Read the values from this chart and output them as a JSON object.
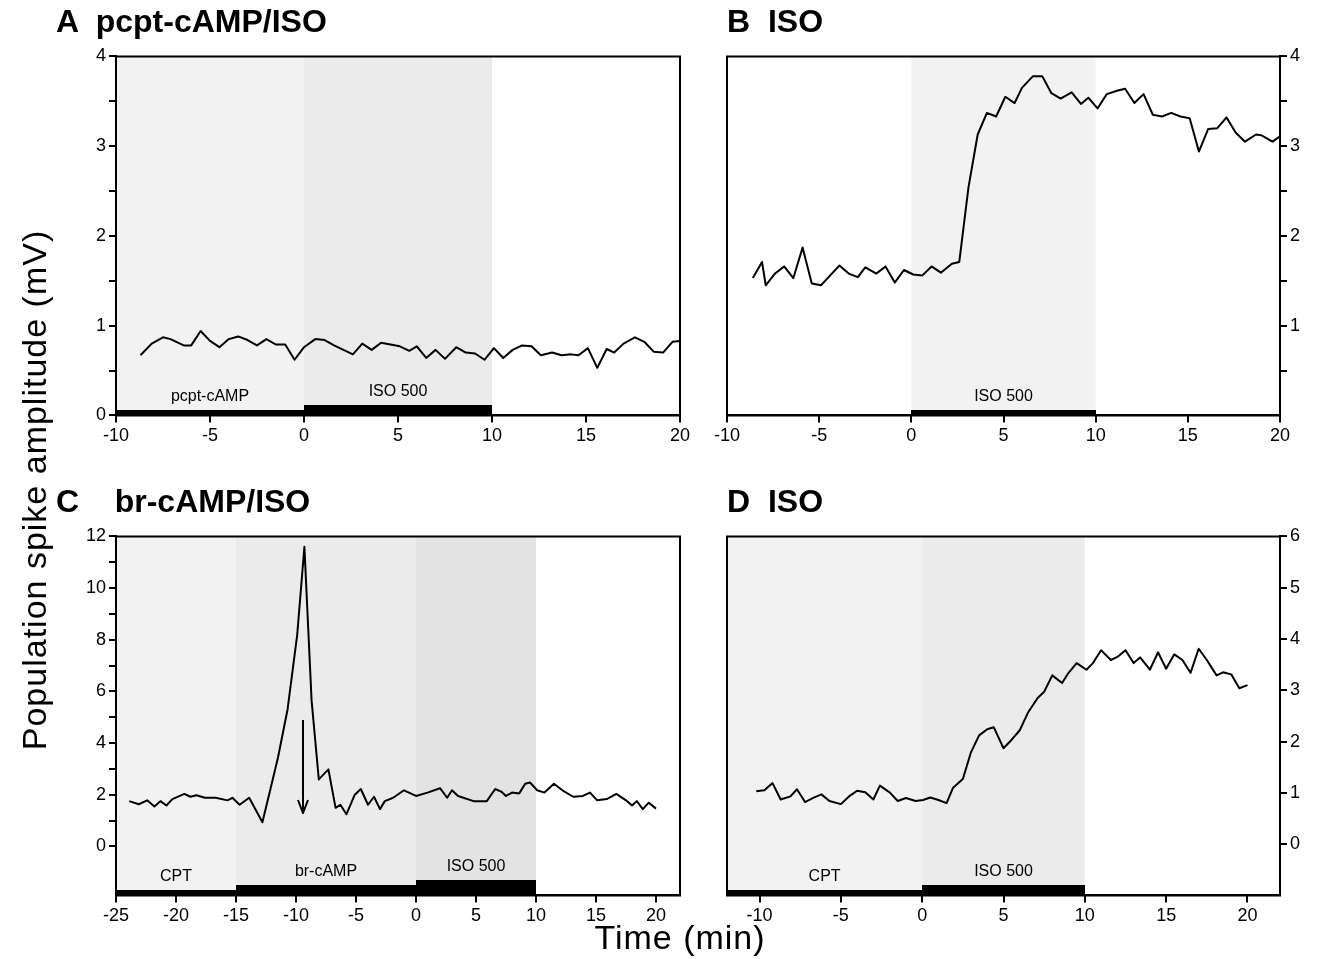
{
  "chart_data": [
    {
      "type": "line",
      "title": "A  pcpt-cAMP/ISO",
      "ylabel": "Population spike amplitude (mV)",
      "xlim": [
        -10,
        20
      ],
      "xticks": [
        -10,
        -5,
        0,
        5,
        10,
        15,
        20
      ],
      "ylim": [
        0,
        4
      ],
      "yticks": [
        0,
        {
          "value": 0.5,
          "label": null
        },
        1,
        {
          "value": 1.5,
          "label": null
        },
        2,
        {
          "value": 2.5,
          "label": null
        },
        3,
        {
          "value": 3.5,
          "label": null
        },
        4
      ],
      "grid": false,
      "x": [
        -8.7,
        -8.1,
        -7.5,
        -7.1,
        -6.4,
        -6.0,
        -5.5,
        -5.0,
        -4.5,
        -4.0,
        -3.5,
        -3.0,
        -2.5,
        -2.0,
        -1.5,
        -1.0,
        -0.5,
        0,
        0.6,
        1.1,
        1.6,
        2.1,
        2.6,
        3.1,
        3.6,
        4.1,
        4.6,
        5.1,
        5.6,
        6.0,
        6.5,
        7.0,
        7.5,
        8.1,
        8.6,
        9.1,
        9.6,
        10.1,
        10.6,
        11.1,
        11.6,
        12.1,
        12.6,
        13.2,
        13.7,
        14.2,
        14.6,
        15.1,
        15.6,
        16.1,
        16.5,
        17.0,
        17.6,
        18.1,
        18.6,
        19.1,
        19.6,
        20
      ],
      "series": [
        {
          "color": "#000000",
          "values": [
            0.67,
            0.8,
            0.87,
            0.85,
            0.78,
            0.78,
            0.94,
            0.83,
            0.76,
            0.85,
            0.88,
            0.84,
            0.78,
            0.85,
            0.79,
            0.79,
            0.62,
            0.76,
            0.85,
            0.84,
            0.78,
            0.73,
            0.68,
            0.8,
            0.73,
            0.81,
            0.79,
            0.77,
            0.72,
            0.77,
            0.64,
            0.73,
            0.63,
            0.76,
            0.7,
            0.69,
            0.62,
            0.75,
            0.64,
            0.73,
            0.78,
            0.77,
            0.67,
            0.7,
            0.67,
            0.68,
            0.67,
            0.75,
            0.53,
            0.74,
            0.7,
            0.8,
            0.87,
            0.82,
            0.71,
            0.7,
            0.82,
            0.83
          ]
        }
      ],
      "bands": [
        {
          "axis": "x",
          "from": -10,
          "to": 0,
          "label": "pcpt-cAMP"
        },
        {
          "axis": "x",
          "from": 0,
          "to": 10,
          "label": "ISO 500"
        }
      ]
    },
    {
      "type": "line",
      "title": "B  ISO",
      "xlim": [
        -10,
        20
      ],
      "xticks": [
        -10,
        -5,
        0,
        5,
        10,
        15,
        20
      ],
      "y2lim": [
        0,
        4
      ],
      "y2ticks": [
        {
          "value": 0.5,
          "label": null
        },
        1,
        {
          "value": 1.5,
          "label": null
        },
        2,
        {
          "value": 2.5,
          "label": null
        },
        3,
        {
          "value": 3.5,
          "label": null
        },
        4
      ],
      "grid": false,
      "x": [
        -8.6,
        -8.1,
        -7.9,
        -7.4,
        -6.9,
        -6.4,
        -5.9,
        -5.4,
        -4.9,
        -4.4,
        -3.9,
        -3.4,
        -2.9,
        -2.5,
        -1.9,
        -1.4,
        -0.9,
        -0.4,
        0.1,
        0.6,
        1.1,
        1.6,
        2.2,
        2.6,
        3.1,
        3.6,
        4.1,
        4.6,
        5.1,
        5.6,
        6.0,
        6.6,
        7.1,
        7.6,
        8.1,
        8.7,
        9.2,
        9.6,
        10.1,
        10.6,
        11.2,
        11.6,
        12.1,
        12.6,
        13.1,
        13.6,
        14.1,
        14.6,
        15.1,
        15.6,
        16.1,
        16.6,
        17.1,
        17.6,
        18.1,
        18.7,
        19.0,
        19.6,
        20.0
      ],
      "series": [
        {
          "color": "#000000",
          "axis": "y2",
          "values": [
            1.53,
            1.71,
            1.45,
            1.58,
            1.66,
            1.53,
            1.87,
            1.47,
            1.45,
            1.56,
            1.67,
            1.58,
            1.54,
            1.65,
            1.58,
            1.66,
            1.48,
            1.62,
            1.57,
            1.56,
            1.66,
            1.59,
            1.69,
            1.71,
            2.54,
            3.13,
            3.37,
            3.33,
            3.55,
            3.48,
            3.65,
            3.78,
            3.78,
            3.59,
            3.53,
            3.6,
            3.47,
            3.54,
            3.42,
            3.58,
            3.62,
            3.64,
            3.48,
            3.58,
            3.35,
            3.33,
            3.37,
            3.33,
            3.31,
            2.94,
            3.19,
            3.2,
            3.32,
            3.15,
            3.05,
            3.13,
            3.12,
            3.05,
            3.11
          ]
        }
      ],
      "bands": [
        {
          "axis": "x",
          "from": 0,
          "to": 10,
          "label": "ISO 500"
        }
      ]
    },
    {
      "type": "line",
      "title": "C    br-cAMP/ISO",
      "xlabel": "Time (min)",
      "xlim": [
        -25,
        22
      ],
      "xticks": [
        -25,
        -20,
        -15,
        -10,
        -5,
        0,
        5,
        10,
        15,
        20
      ],
      "ylim": [
        -1.9,
        12
      ],
      "yticks": [
        0,
        {
          "value": 1,
          "label": null
        },
        2,
        {
          "value": 3,
          "label": null
        },
        4,
        {
          "value": 5,
          "label": null
        },
        6,
        {
          "value": 7,
          "label": null
        },
        8,
        {
          "value": 9,
          "label": null
        },
        10,
        {
          "value": 11,
          "label": null
        },
        12
      ],
      "grid": false,
      "x": [
        -23.9,
        -23.1,
        -22.4,
        -21.8,
        -21.3,
        -20.8,
        -20.3,
        -19.3,
        -18.8,
        -18.3,
        -17.6,
        -16.7,
        -15.7,
        -15.3,
        -14.7,
        -13.9,
        -12.8,
        -12.2,
        -11.5,
        -10.7,
        -9.9,
        -9.3,
        -8.7,
        -8.1,
        -7.3,
        -6.7,
        -6.3,
        -5.8,
        -5.1,
        -4.6,
        -4.0,
        -3.5,
        -3.0,
        -2.6,
        -1.9,
        -1.0,
        0,
        0.96,
        2.0,
        2.6,
        3.0,
        3.5,
        4.8,
        5.9,
        6.6,
        7.1,
        7.5,
        8.0,
        8.6,
        9.1,
        9.5,
        10.1,
        10.7,
        11.5,
        12.2,
        13.1,
        13.9,
        14.5,
        15.1,
        15.9,
        16.7,
        17.5,
        18.0,
        18.4,
        18.9,
        19.4,
        20
      ],
      "series": [
        {
          "color": "#000000",
          "values": [
            1.75,
            1.63,
            1.78,
            1.54,
            1.75,
            1.58,
            1.83,
            2.03,
            1.92,
            1.98,
            1.88,
            1.88,
            1.78,
            1.88,
            1.61,
            1.88,
            0.93,
            2.08,
            3.44,
            5.31,
            8.19,
            11.6,
            5.64,
            2.59,
            2.98,
            1.49,
            1.61,
            1.24,
            2.0,
            2.22,
            1.61,
            1.92,
            1.44,
            1.75,
            1.88,
            2.17,
            1.95,
            2.08,
            2.25,
            1.88,
            2.17,
            1.95,
            1.75,
            1.75,
            2.22,
            2.12,
            1.95,
            2.08,
            2.05,
            2.42,
            2.47,
            2.17,
            2.08,
            2.42,
            2.17,
            1.92,
            1.95,
            2.08,
            1.78,
            1.83,
            2.03,
            1.78,
            1.58,
            1.75,
            1.44,
            1.69,
            1.46
          ]
        }
      ],
      "bands": [
        {
          "axis": "x",
          "from": -25,
          "to": -15,
          "label": "CPT"
        },
        {
          "axis": "x",
          "from": -15,
          "to": 0,
          "label": "br-cAMP"
        },
        {
          "axis": "x",
          "from": 0,
          "to": 10,
          "label": "ISO 500"
        }
      ]
    },
    {
      "type": "line",
      "title": "D  ISO",
      "xlim": [
        -12,
        22
      ],
      "xticks": [
        -10,
        -5,
        0,
        5,
        10,
        15,
        20
      ],
      "y2lim": [
        -1,
        6
      ],
      "y2ticks": [
        0,
        1,
        2,
        3,
        4,
        5,
        6
      ],
      "grid": false,
      "x": [
        -10.2,
        -9.7,
        -9.2,
        -8.7,
        -8.1,
        -7.7,
        -7.2,
        -6.7,
        -6.2,
        -5.7,
        -5.0,
        -4.5,
        -4.0,
        -3.5,
        -3.0,
        -2.6,
        -2.0,
        -1.5,
        -1.0,
        -0.4,
        0.05,
        0.5,
        1.0,
        1.5,
        1.9,
        2.5,
        3.0,
        3.5,
        4.0,
        4.4,
        5.0,
        5.4,
        6.0,
        6.5,
        7.1,
        7.5,
        8.0,
        8.6,
        9.0,
        9.5,
        10.1,
        10.5,
        11.0,
        11.6,
        12.0,
        12.5,
        13.0,
        13.4,
        14.0,
        14.5,
        15.0,
        15.5,
        16.0,
        16.5,
        17.0,
        17.5,
        18.1,
        18.5,
        19.0,
        19.5,
        20.0
      ],
      "series": [
        {
          "color": "#000000",
          "axis": "y2",
          "values": [
            1.03,
            1.05,
            1.19,
            0.87,
            0.93,
            1.07,
            0.82,
            0.9,
            0.97,
            0.84,
            0.78,
            0.93,
            1.04,
            1.01,
            0.87,
            1.14,
            1.01,
            0.84,
            0.9,
            0.84,
            0.86,
            0.91,
            0.86,
            0.8,
            1.1,
            1.27,
            1.79,
            2.12,
            2.24,
            2.28,
            1.87,
            2.0,
            2.22,
            2.56,
            2.85,
            2.97,
            3.29,
            3.14,
            3.34,
            3.53,
            3.4,
            3.53,
            3.78,
            3.59,
            3.65,
            3.78,
            3.53,
            3.64,
            3.4,
            3.74,
            3.42,
            3.7,
            3.59,
            3.34,
            3.81,
            3.59,
            3.29,
            3.35,
            3.31,
            3.04,
            3.1
          ]
        }
      ],
      "bands": [
        {
          "axis": "x",
          "from": -12,
          "to": 0,
          "label": "CPT"
        },
        {
          "axis": "x",
          "from": 0,
          "to": 10,
          "label": "ISO 500"
        }
      ]
    }
  ]
}
